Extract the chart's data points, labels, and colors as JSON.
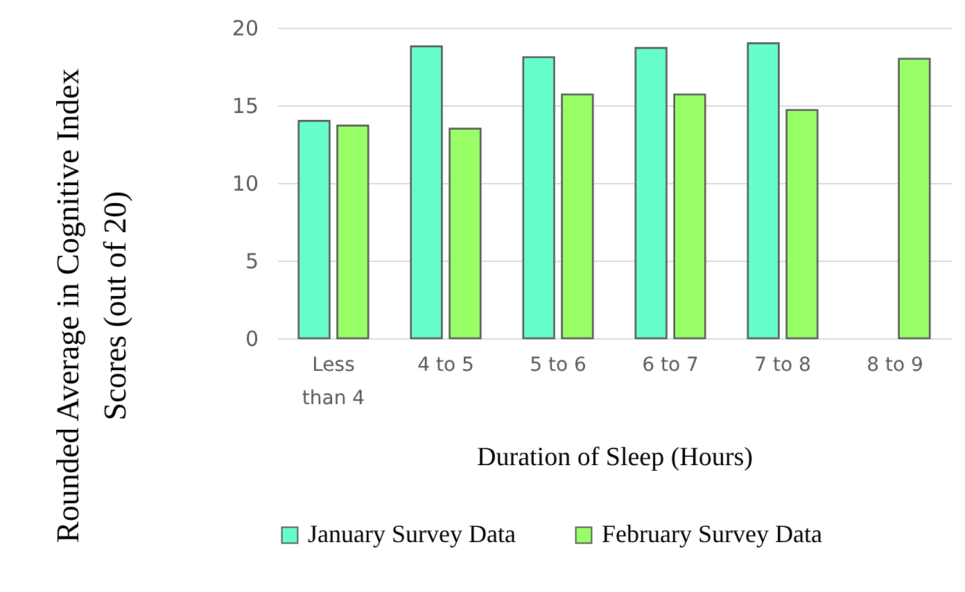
{
  "chart_data": {
    "type": "bar",
    "xlabel": "Duration of Sleep (Hours)",
    "ylabel": "Rounded Average in Cognitive Index\nScores (out of 20)",
    "categories": [
      "Less than 4",
      "4 to 5",
      "5 to 6",
      "6 to 7",
      "7 to 8",
      "8 to 9"
    ],
    "series": [
      {
        "name": "January Survey Data",
        "color": "#66ffcc",
        "values": [
          14.0,
          18.8,
          18.1,
          18.7,
          19.0,
          null
        ]
      },
      {
        "name": "February Survey Data",
        "color": "#99ff66",
        "values": [
          13.7,
          13.5,
          15.7,
          15.7,
          14.7,
          18.0
        ]
      }
    ],
    "ylim": [
      0,
      20
    ],
    "yticks": [
      0,
      5,
      10,
      15,
      20
    ],
    "grid": "y",
    "legend": "bottom"
  }
}
